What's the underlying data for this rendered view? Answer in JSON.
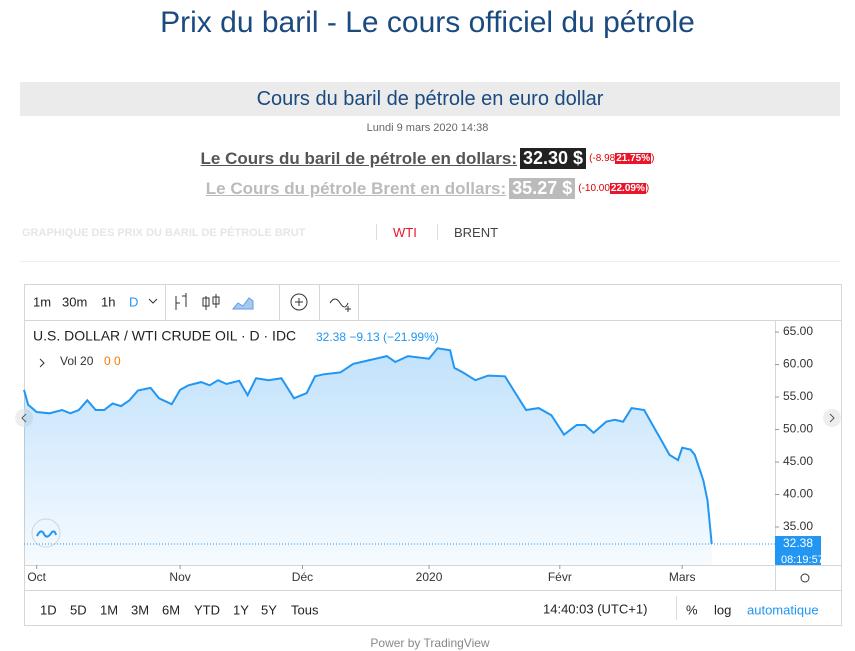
{
  "header": {
    "title": "Prix du baril - Le cours officiel du pétrole"
  },
  "subheader": {
    "title": "Cours du baril de pétrole en euro dollar",
    "date": "Lundi 9 mars 2020 14:38"
  },
  "quotes": [
    {
      "label": "Le Cours du baril de pétrole en dollars:",
      "price": "32.30 $",
      "change": "(-8.98",
      "pct": "21.75%",
      "suffix": ")"
    },
    {
      "label": "Le Cours du pétrole Brent en dollars:",
      "price": "35.27 $",
      "change": "(-10.00",
      "pct": "22.09%",
      "suffix": ")"
    }
  ],
  "tabs": [
    "GRAPHIQUE DES PRIX DU BARIL DE PÉTROLE BRUT",
    "WTI",
    "BRENT"
  ],
  "toolbar": {
    "intervals": [
      "1m",
      "30m",
      "1h",
      "D"
    ]
  },
  "legend": {
    "symbol": "U.S. DOLLAR / WTI CRUDE OIL · D · IDC",
    "quote": "32.38 −9.13 (−21.99%)",
    "volume": "Vol 20",
    "volume_values": "0 0"
  },
  "ranges": [
    "1D",
    "5D",
    "1M",
    "3M",
    "6M",
    "YTD",
    "1Y",
    "5Y",
    "Tous"
  ],
  "clock": "14:40:03 (UTC+1)",
  "scale_options": [
    "%",
    "log",
    "automatique"
  ],
  "footer": "Power by TradingView",
  "chart_data": {
    "type": "line",
    "series": [
      {
        "name": "U.S. DOLLAR / WTI CRUDE OIL",
        "color": "#2196f3",
        "x": [
          -3,
          -2,
          0,
          3,
          6,
          8,
          10,
          12,
          14,
          16,
          18,
          20,
          22,
          24,
          27,
          29,
          32,
          34,
          36,
          39,
          41,
          43,
          45,
          48,
          50,
          52,
          55,
          58,
          61,
          64,
          66,
          68,
          72,
          75,
          79,
          83,
          85,
          88,
          93,
          95,
          98,
          99,
          101,
          104,
          107,
          111,
          113,
          116,
          119,
          122,
          125,
          128,
          130,
          132,
          135,
          137,
          139,
          141,
          144,
          146,
          148,
          150,
          152,
          153,
          155,
          156,
          158,
          159,
          160
        ],
        "values": [
          56.1,
          53.8,
          52.7,
          52.5,
          53,
          52.5,
          53,
          54.5,
          53,
          53,
          54,
          53.6,
          54.5,
          56,
          56.4,
          54.8,
          53.9,
          56.1,
          56.8,
          57.3,
          56.8,
          57.6,
          57,
          57.5,
          55.3,
          57.9,
          57.6,
          57.9,
          54.8,
          55.6,
          58.2,
          58.5,
          58.8,
          60.1,
          60.7,
          61.3,
          60.4,
          61.3,
          60.9,
          62.5,
          62.2,
          59.5,
          58.8,
          57.6,
          58.3,
          58.2,
          56.1,
          53,
          53.3,
          52.2,
          49.2,
          50.7,
          50.7,
          49.5,
          51.2,
          51.5,
          51.2,
          53.3,
          53,
          50.7,
          48.4,
          46.1,
          45.3,
          47.2,
          46.9,
          46.1,
          42.2,
          39.1,
          32.4
        ]
      }
    ],
    "xlim": [
      -3,
      175
    ],
    "xticks": [
      {
        "value": 0,
        "label": "Oct"
      },
      {
        "value": 34,
        "label": "Nov"
      },
      {
        "value": 63,
        "label": "Déc"
      },
      {
        "value": 93,
        "label": "2020"
      },
      {
        "value": 124,
        "label": "Févr"
      },
      {
        "value": 153,
        "label": "Mars"
      }
    ],
    "ylim": [
      29.15,
      66.55
    ],
    "yticks": [
      {
        "value": 35,
        "label": "35.00"
      },
      {
        "value": 40,
        "label": "40.00"
      },
      {
        "value": 45,
        "label": "45.00"
      },
      {
        "value": 50,
        "label": "50.00"
      },
      {
        "value": 55,
        "label": "55.00"
      },
      {
        "value": 60,
        "label": "60.00"
      },
      {
        "value": 65,
        "label": "65.00"
      }
    ],
    "last_price": {
      "value": 32.38,
      "label": "32.38"
    },
    "time_label": "08:19:57"
  }
}
